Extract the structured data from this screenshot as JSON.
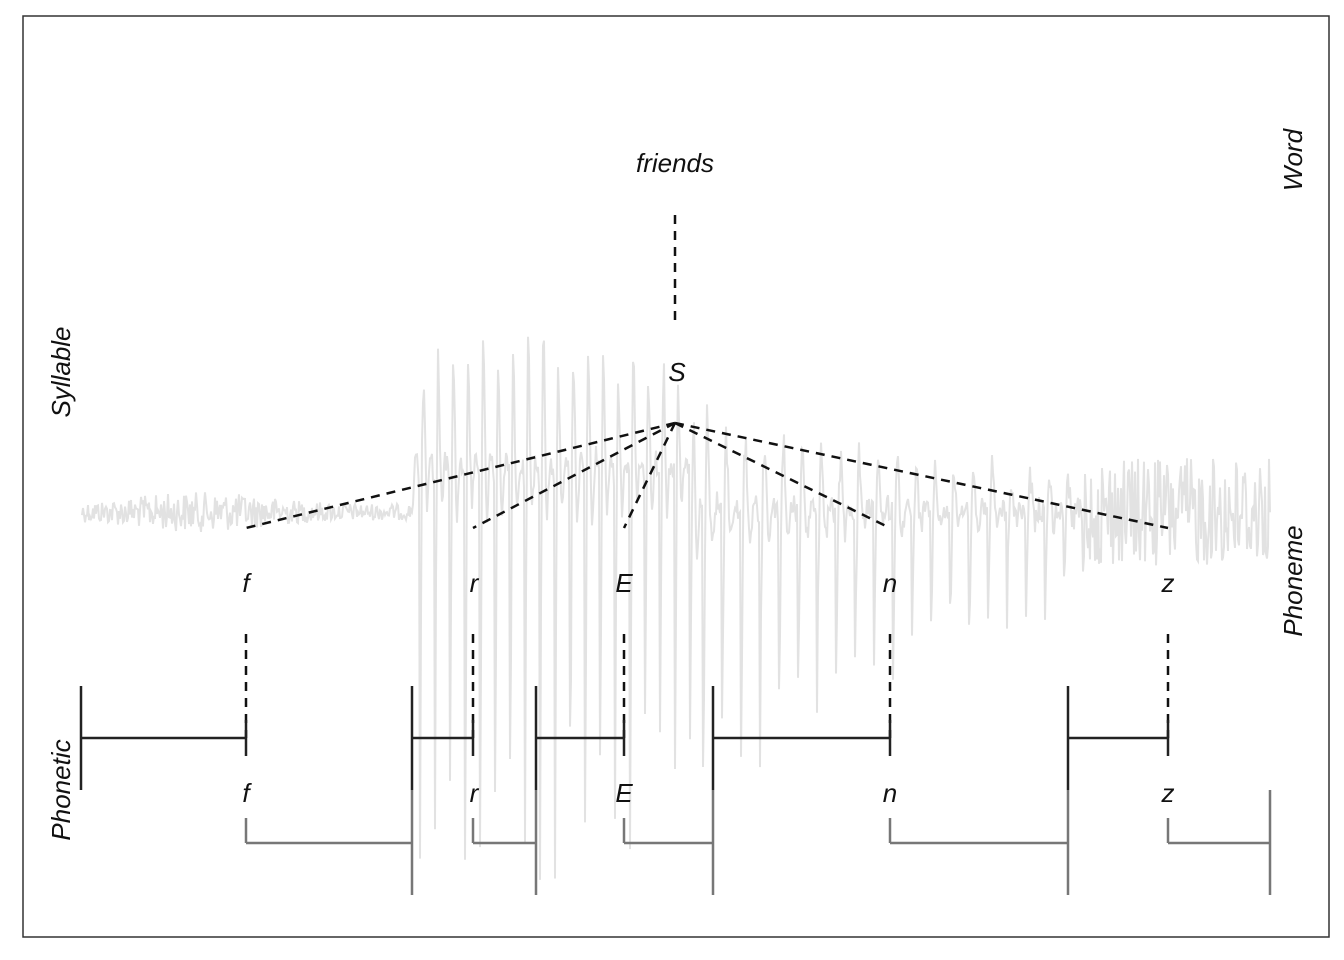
{
  "word": "friends",
  "syllable": "S",
  "phonemes": [
    "f",
    "r",
    "E",
    "n",
    "z"
  ],
  "phones": [
    "f",
    "r",
    "E",
    "n",
    "z"
  ],
  "tiers": {
    "word": "Word",
    "syllable": "Syllable",
    "phoneme": "Phoneme",
    "phonetic": "Phonetic"
  },
  "colors": {
    "waveform": "#e2e2e2",
    "tree": "#111111",
    "upper_brackets": "#222222",
    "lower_brackets": "#777777",
    "frame": "#333333"
  }
}
